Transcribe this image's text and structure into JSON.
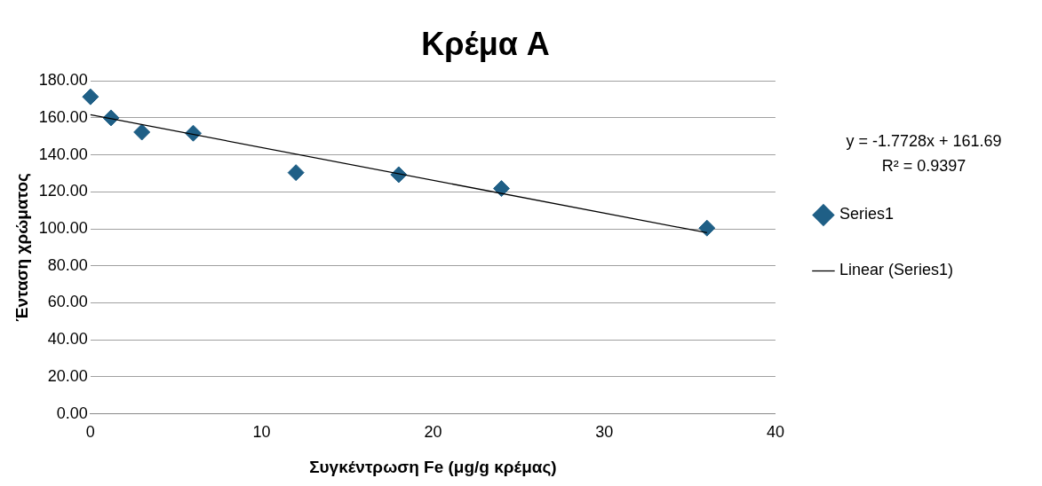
{
  "chart_data": {
    "type": "scatter",
    "title": "Κρέμα A",
    "xlabel": "Συγκέντρωση Fe (μg/g κρέμας)",
    "ylabel": "Ένταση χρώματος",
    "xlim": [
      0,
      40
    ],
    "xticks": [
      0,
      10,
      20,
      30,
      40
    ],
    "ylim": [
      0,
      180
    ],
    "yticks": [
      {
        "value": 0,
        "label": "0.00"
      },
      {
        "value": 20,
        "label": "20.00"
      },
      {
        "value": 40,
        "label": "40.00"
      },
      {
        "value": 60,
        "label": "60.00"
      },
      {
        "value": 80,
        "label": "80.00"
      },
      {
        "value": 100,
        "label": "100.00"
      },
      {
        "value": 120,
        "label": "120.00"
      },
      {
        "value": 140,
        "label": "140.00"
      },
      {
        "value": 160,
        "label": "160.00"
      },
      {
        "value": 180,
        "label": "180.00"
      }
    ],
    "grid": "y",
    "legend": "right",
    "marker": "diamond",
    "series": [
      {
        "name": "Series1",
        "color": "#1f5f86",
        "x": [
          0,
          1.2,
          3,
          6,
          12,
          18,
          24,
          36
        ],
        "values": [
          171.4,
          160,
          152.3,
          151.7,
          130.4,
          129.3,
          121.8,
          100.4
        ]
      },
      {
        "name": "Linear (Series1)",
        "type": "line",
        "color": "#000000",
        "marker": "none",
        "x": [
          0,
          36
        ],
        "values": [
          161.7,
          97.9
        ]
      }
    ],
    "annotations": [
      "y = -1.7728x + 161.69",
      "R² = 0.9397"
    ]
  }
}
